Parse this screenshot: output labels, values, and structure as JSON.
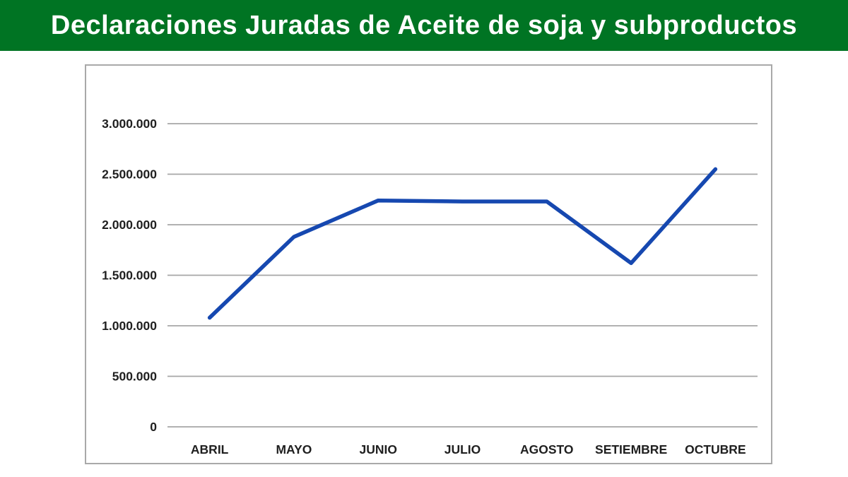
{
  "header": {
    "title": "Declaraciones Juradas de Aceite de soja y subproductos",
    "bg_color": "#007423",
    "text_color": "#ffffff"
  },
  "chart_data": {
    "type": "line",
    "title": "",
    "categories": [
      "ABRIL",
      "MAYO",
      "JUNIO",
      "JULIO",
      "AGOSTO",
      "SETIEMBRE",
      "OCTUBRE"
    ],
    "values": [
      1080000,
      1880000,
      2240000,
      2230000,
      2230000,
      1620000,
      2550000
    ],
    "ylim": [
      0,
      3000000
    ],
    "ytick_step": 500000,
    "ytick_labels": [
      "0",
      "500.000",
      "1.000.000",
      "1.500.000",
      "2.000.000",
      "2.500.000",
      "3.000.000"
    ],
    "grid": true,
    "legend_position": "none",
    "line_color": "#1648b0",
    "grid_color": "#a6a6a6",
    "frame_color": "#a9a9a9",
    "label_color": "#1f1f1f"
  }
}
